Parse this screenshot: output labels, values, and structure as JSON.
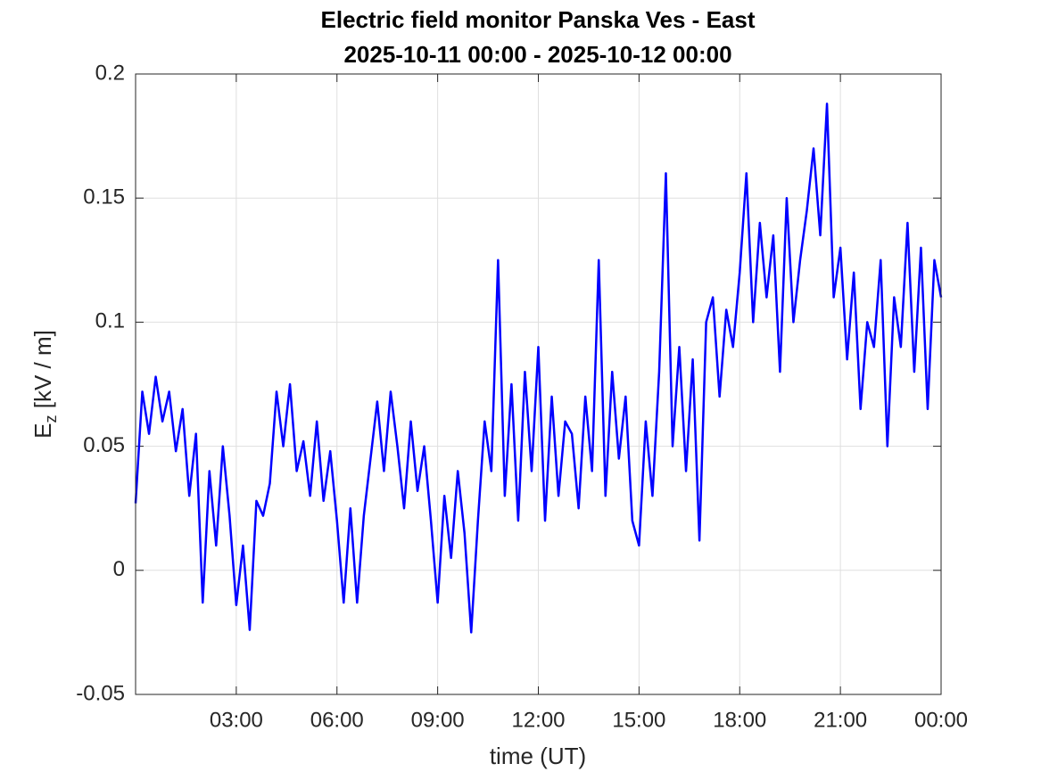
{
  "chart_data": {
    "type": "line",
    "title": [
      "Electric field monitor Panska Ves - East",
      "2025-10-11 00:00 - 2025-10-12 00:00"
    ],
    "x_label": "time (UT)",
    "y_label": [
      "E",
      "z",
      " [kV / m]"
    ],
    "x": [
      0,
      0.2,
      0.4,
      0.6,
      0.8,
      1,
      1.2,
      1.4,
      1.6,
      1.8,
      2,
      2.2,
      2.4,
      2.6,
      2.8,
      3,
      3.2,
      3.4,
      3.6,
      3.8,
      4,
      4.2,
      4.4,
      4.6,
      4.8,
      5,
      5.2,
      5.4,
      5.6,
      5.8,
      6,
      6.2,
      6.4,
      6.6,
      6.8,
      7,
      7.2,
      7.4,
      7.6,
      7.8,
      8,
      8.2,
      8.4,
      8.6,
      8.8,
      9,
      9.2,
      9.4,
      9.6,
      9.8,
      10,
      10.2,
      10.4,
      10.6,
      10.8,
      11,
      11.2,
      11.4,
      11.6,
      11.8,
      12,
      12.2,
      12.4,
      12.6,
      12.8,
      13,
      13.2,
      13.4,
      13.6,
      13.8,
      14,
      14.2,
      14.4,
      14.6,
      14.8,
      15,
      15.2,
      15.4,
      15.6,
      15.8,
      16,
      16.2,
      16.4,
      16.6,
      16.8,
      17,
      17.2,
      17.4,
      17.6,
      17.8,
      18,
      18.2,
      18.4,
      18.6,
      18.8,
      19,
      19.2,
      19.4,
      19.6,
      19.8,
      20,
      20.2,
      20.4,
      20.6,
      20.8,
      21,
      21.2,
      21.4,
      21.6,
      21.8,
      22,
      22.2,
      22.4,
      22.6,
      22.8,
      23,
      23.2,
      23.4,
      23.6,
      23.8,
      24
    ],
    "series": [
      {
        "name": "Ez",
        "color": "#0000ff",
        "values": [
          0.027,
          0.072,
          0.055,
          0.078,
          0.06,
          0.072,
          0.048,
          0.065,
          0.03,
          0.055,
          -0.013,
          0.04,
          0.01,
          0.05,
          0.022,
          -0.014,
          0.01,
          -0.024,
          0.028,
          0.022,
          0.035,
          0.072,
          0.05,
          0.075,
          0.04,
          0.052,
          0.03,
          0.06,
          0.028,
          0.048,
          0.02,
          -0.013,
          0.025,
          -0.013,
          0.022,
          0.045,
          0.068,
          0.04,
          0.072,
          0.05,
          0.025,
          0.06,
          0.032,
          0.05,
          0.02,
          -0.013,
          0.03,
          0.005,
          0.04,
          0.015,
          -0.025,
          0.02,
          0.06,
          0.04,
          0.125,
          0.03,
          0.075,
          0.02,
          0.08,
          0.04,
          0.09,
          0.02,
          0.07,
          0.03,
          0.06,
          0.055,
          0.025,
          0.07,
          0.04,
          0.125,
          0.03,
          0.08,
          0.045,
          0.07,
          0.02,
          0.01,
          0.06,
          0.03,
          0.08,
          0.16,
          0.05,
          0.09,
          0.04,
          0.085,
          0.012,
          0.1,
          0.11,
          0.07,
          0.105,
          0.09,
          0.12,
          0.16,
          0.1,
          0.14,
          0.11,
          0.135,
          0.08,
          0.15,
          0.1,
          0.125,
          0.145,
          0.17,
          0.135,
          0.188,
          0.11,
          0.13,
          0.085,
          0.12,
          0.065,
          0.1,
          0.09,
          0.125,
          0.05,
          0.11,
          0.09,
          0.14,
          0.08,
          0.13,
          0.065,
          0.125,
          0.11
        ]
      }
    ],
    "xlim": [
      0,
      24
    ],
    "xticks": [
      {
        "value": 3,
        "label": "03:00"
      },
      {
        "value": 6,
        "label": "06:00"
      },
      {
        "value": 9,
        "label": "09:00"
      },
      {
        "value": 12,
        "label": "12:00"
      },
      {
        "value": 15,
        "label": "15:00"
      },
      {
        "value": 18,
        "label": "18:00"
      },
      {
        "value": 21,
        "label": "21:00"
      },
      {
        "value": 24,
        "label": "00:00"
      }
    ],
    "ylim": [
      -0.05,
      0.2
    ],
    "yticks": [
      -0.05,
      0,
      0.05,
      0.1,
      0.15,
      0.2
    ],
    "grid": true
  }
}
